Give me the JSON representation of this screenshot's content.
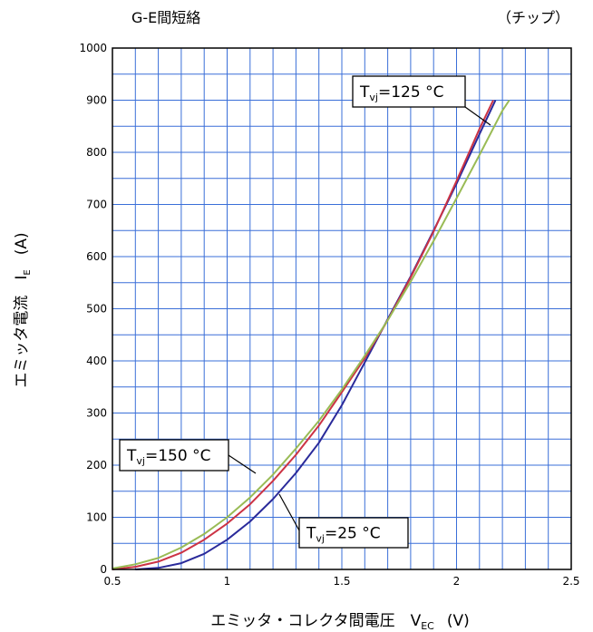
{
  "chart_data": {
    "type": "line",
    "title_left": "G-E間短絡",
    "title_right": "（チップ）",
    "xlabel": {
      "main": "エミッタ・コレクタ間電圧　V",
      "sub": "EC",
      "unit": "(V)"
    },
    "ylabel": {
      "main": "エミッタ電流　I",
      "sub": "E",
      "unit": "(A)"
    },
    "xlim": [
      0.5,
      2.5
    ],
    "ylim": [
      0,
      1000
    ],
    "x_major_ticks": [
      "0.5",
      "1",
      "1.5",
      "2",
      "2.5"
    ],
    "y_major_ticks": [
      "0",
      "100",
      "200",
      "300",
      "400",
      "500",
      "600",
      "700",
      "800",
      "900",
      "1000"
    ],
    "grid": {
      "major": true,
      "minor": true,
      "x_minor_step": 0.1,
      "y_minor_step": 50
    },
    "series": [
      {
        "name": "Tvj=25 °C",
        "color": "#2a2a9a",
        "x": [
          0.6,
          0.7,
          0.8,
          0.9,
          1.0,
          1.1,
          1.2,
          1.3,
          1.4,
          1.5,
          1.6,
          1.7,
          1.8,
          1.9,
          2.0,
          2.1,
          2.17
        ],
        "y": [
          0,
          3,
          12,
          30,
          57,
          92,
          135,
          185,
          243,
          315,
          397,
          480,
          562,
          650,
          740,
          835,
          900
        ]
      },
      {
        "name": "Tvj=125 °C",
        "color": "#cc3344",
        "x": [
          0.5,
          0.6,
          0.7,
          0.8,
          0.9,
          1.0,
          1.1,
          1.2,
          1.3,
          1.4,
          1.5,
          1.6,
          1.7,
          1.8,
          1.9,
          2.0,
          2.1,
          2.16
        ],
        "y": [
          0,
          5,
          15,
          32,
          57,
          88,
          125,
          170,
          220,
          276,
          340,
          405,
          478,
          560,
          648,
          745,
          845,
          900
        ]
      },
      {
        "name": "Tvj=150 °C",
        "color": "#99bb55",
        "x": [
          0.5,
          0.6,
          0.7,
          0.8,
          0.9,
          1.0,
          1.1,
          1.2,
          1.3,
          1.4,
          1.5,
          1.6,
          1.7,
          1.8,
          1.9,
          2.0,
          2.1,
          2.2,
          2.23
        ],
        "y": [
          2,
          10,
          22,
          42,
          68,
          100,
          138,
          182,
          232,
          285,
          345,
          410,
          478,
          552,
          630,
          712,
          795,
          880,
          900
        ]
      }
    ],
    "annotations": [
      {
        "series": "Tvj=125 °C",
        "main": "T",
        "sub": "vj",
        "rest": "=125 °C"
      },
      {
        "series": "Tvj=150 °C",
        "main": "T",
        "sub": "vj",
        "rest": "=150 °C"
      },
      {
        "series": "Tvj=25 °C",
        "main": "T",
        "sub": "vj",
        "rest": "=25 °C"
      }
    ]
  },
  "colors": {
    "grid": "#3a6fd8",
    "frame": "#000000"
  }
}
